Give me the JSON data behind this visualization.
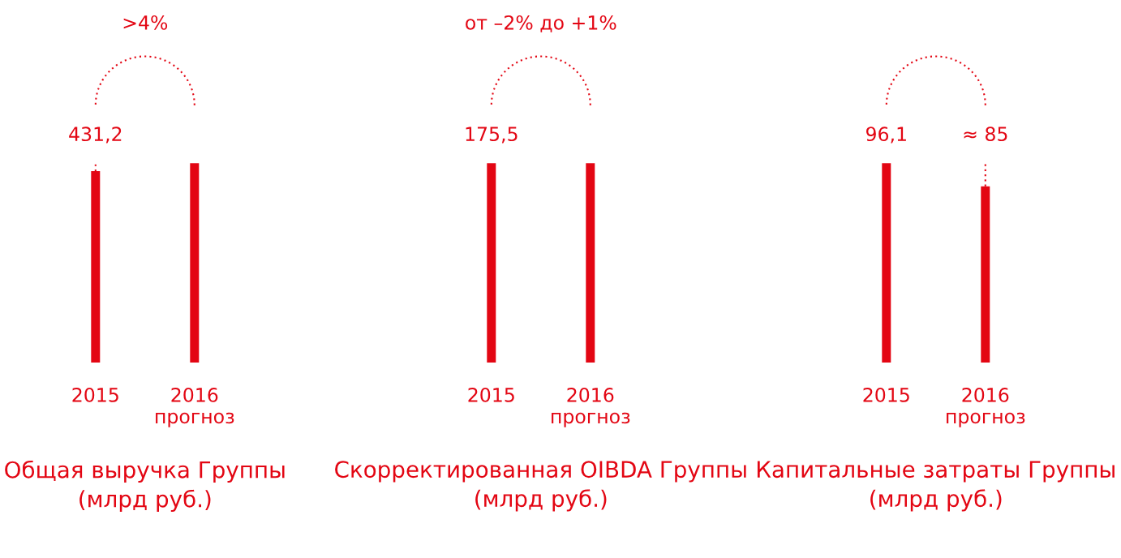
{
  "chart_data": [
    {
      "type": "bar",
      "title": "Общая выручка Группы\n(млрд руб.)",
      "categories": [
        "2015",
        "2016\nпрогноз"
      ],
      "values": [
        431.2,
        449
      ],
      "value_labels": [
        "431,2",
        null
      ],
      "color": "#e30613",
      "annotations": [
        ">4%"
      ]
    },
    {
      "type": "bar",
      "title": "Скорректированная OIBDA Группы\n(млрд руб.)",
      "categories": [
        "2015",
        "2016\nпрогноз"
      ],
      "values": [
        175.5,
        175.5
      ],
      "value_labels": [
        "175,5",
        null
      ],
      "color": "#e30613",
      "annotations": [
        "от –2% до +1%"
      ]
    },
    {
      "type": "bar",
      "title": "Капитальные затраты Группы\n(млрд руб.)",
      "categories": [
        "2015",
        "2016\nпрогноз"
      ],
      "values": [
        96.1,
        85
      ],
      "value_labels": [
        "96,1",
        "≈ 85"
      ],
      "color": "#e30613"
    }
  ]
}
